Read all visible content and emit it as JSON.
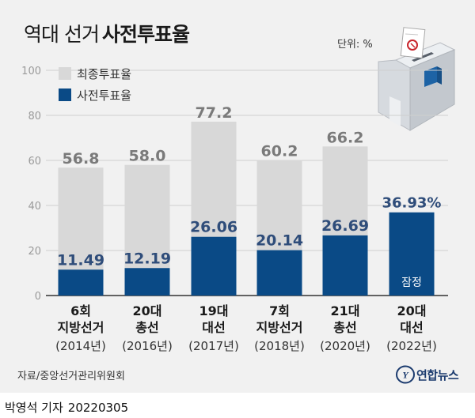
{
  "title": {
    "sub": "역대 선거",
    "main": "사전투표율"
  },
  "unit": "단위: %",
  "chart_data": {
    "type": "bar",
    "yticks": [
      0,
      20,
      40,
      60,
      80,
      100
    ],
    "ylim": [
      0,
      100
    ],
    "legend": [
      {
        "label": "최종투표율",
        "color": "#d8d8d8"
      },
      {
        "label": "사전투표율",
        "color": "#0a4a86"
      }
    ],
    "categories": [
      {
        "name": "6회",
        "name2": "지방선거",
        "year": "(2014년)"
      },
      {
        "name": "20대",
        "name2": "총선",
        "year": "(2016년)"
      },
      {
        "name": "19대",
        "name2": "대선",
        "year": "(2017년)"
      },
      {
        "name": "7회",
        "name2": "지방선거",
        "year": "(2018년)"
      },
      {
        "name": "21대",
        "name2": "총선",
        "year": "(2020년)"
      },
      {
        "name": "20대",
        "name2": "대선",
        "year": "(2022년)"
      }
    ],
    "series": [
      {
        "name": "최종투표율",
        "values": [
          56.8,
          58.0,
          77.2,
          60.2,
          66.2,
          null
        ],
        "labels": [
          "56.8",
          "58.0",
          "77.2",
          "60.2",
          "66.2",
          ""
        ]
      },
      {
        "name": "사전투표율",
        "values": [
          11.49,
          12.19,
          26.06,
          20.14,
          26.69,
          36.93
        ],
        "labels": [
          "11.49",
          "12.19",
          "26.06",
          "20.14",
          "26.69",
          "36.93%"
        ]
      }
    ],
    "annotations": [
      {
        "category_index": 5,
        "text": "잠정"
      }
    ]
  },
  "colors": {
    "total": "#d8d8d8",
    "early": "#0a4a86",
    "total_label": "#7a7a7a",
    "early_label": "#2f4d7a"
  },
  "source": "자료/중앙선거관리위원회",
  "logo": {
    "text": "연합뉴스",
    "mark": "Y",
    "icon": "yonhap-logo-icon"
  },
  "byline": {
    "author": "박영석 기자",
    "date": "20220305"
  }
}
